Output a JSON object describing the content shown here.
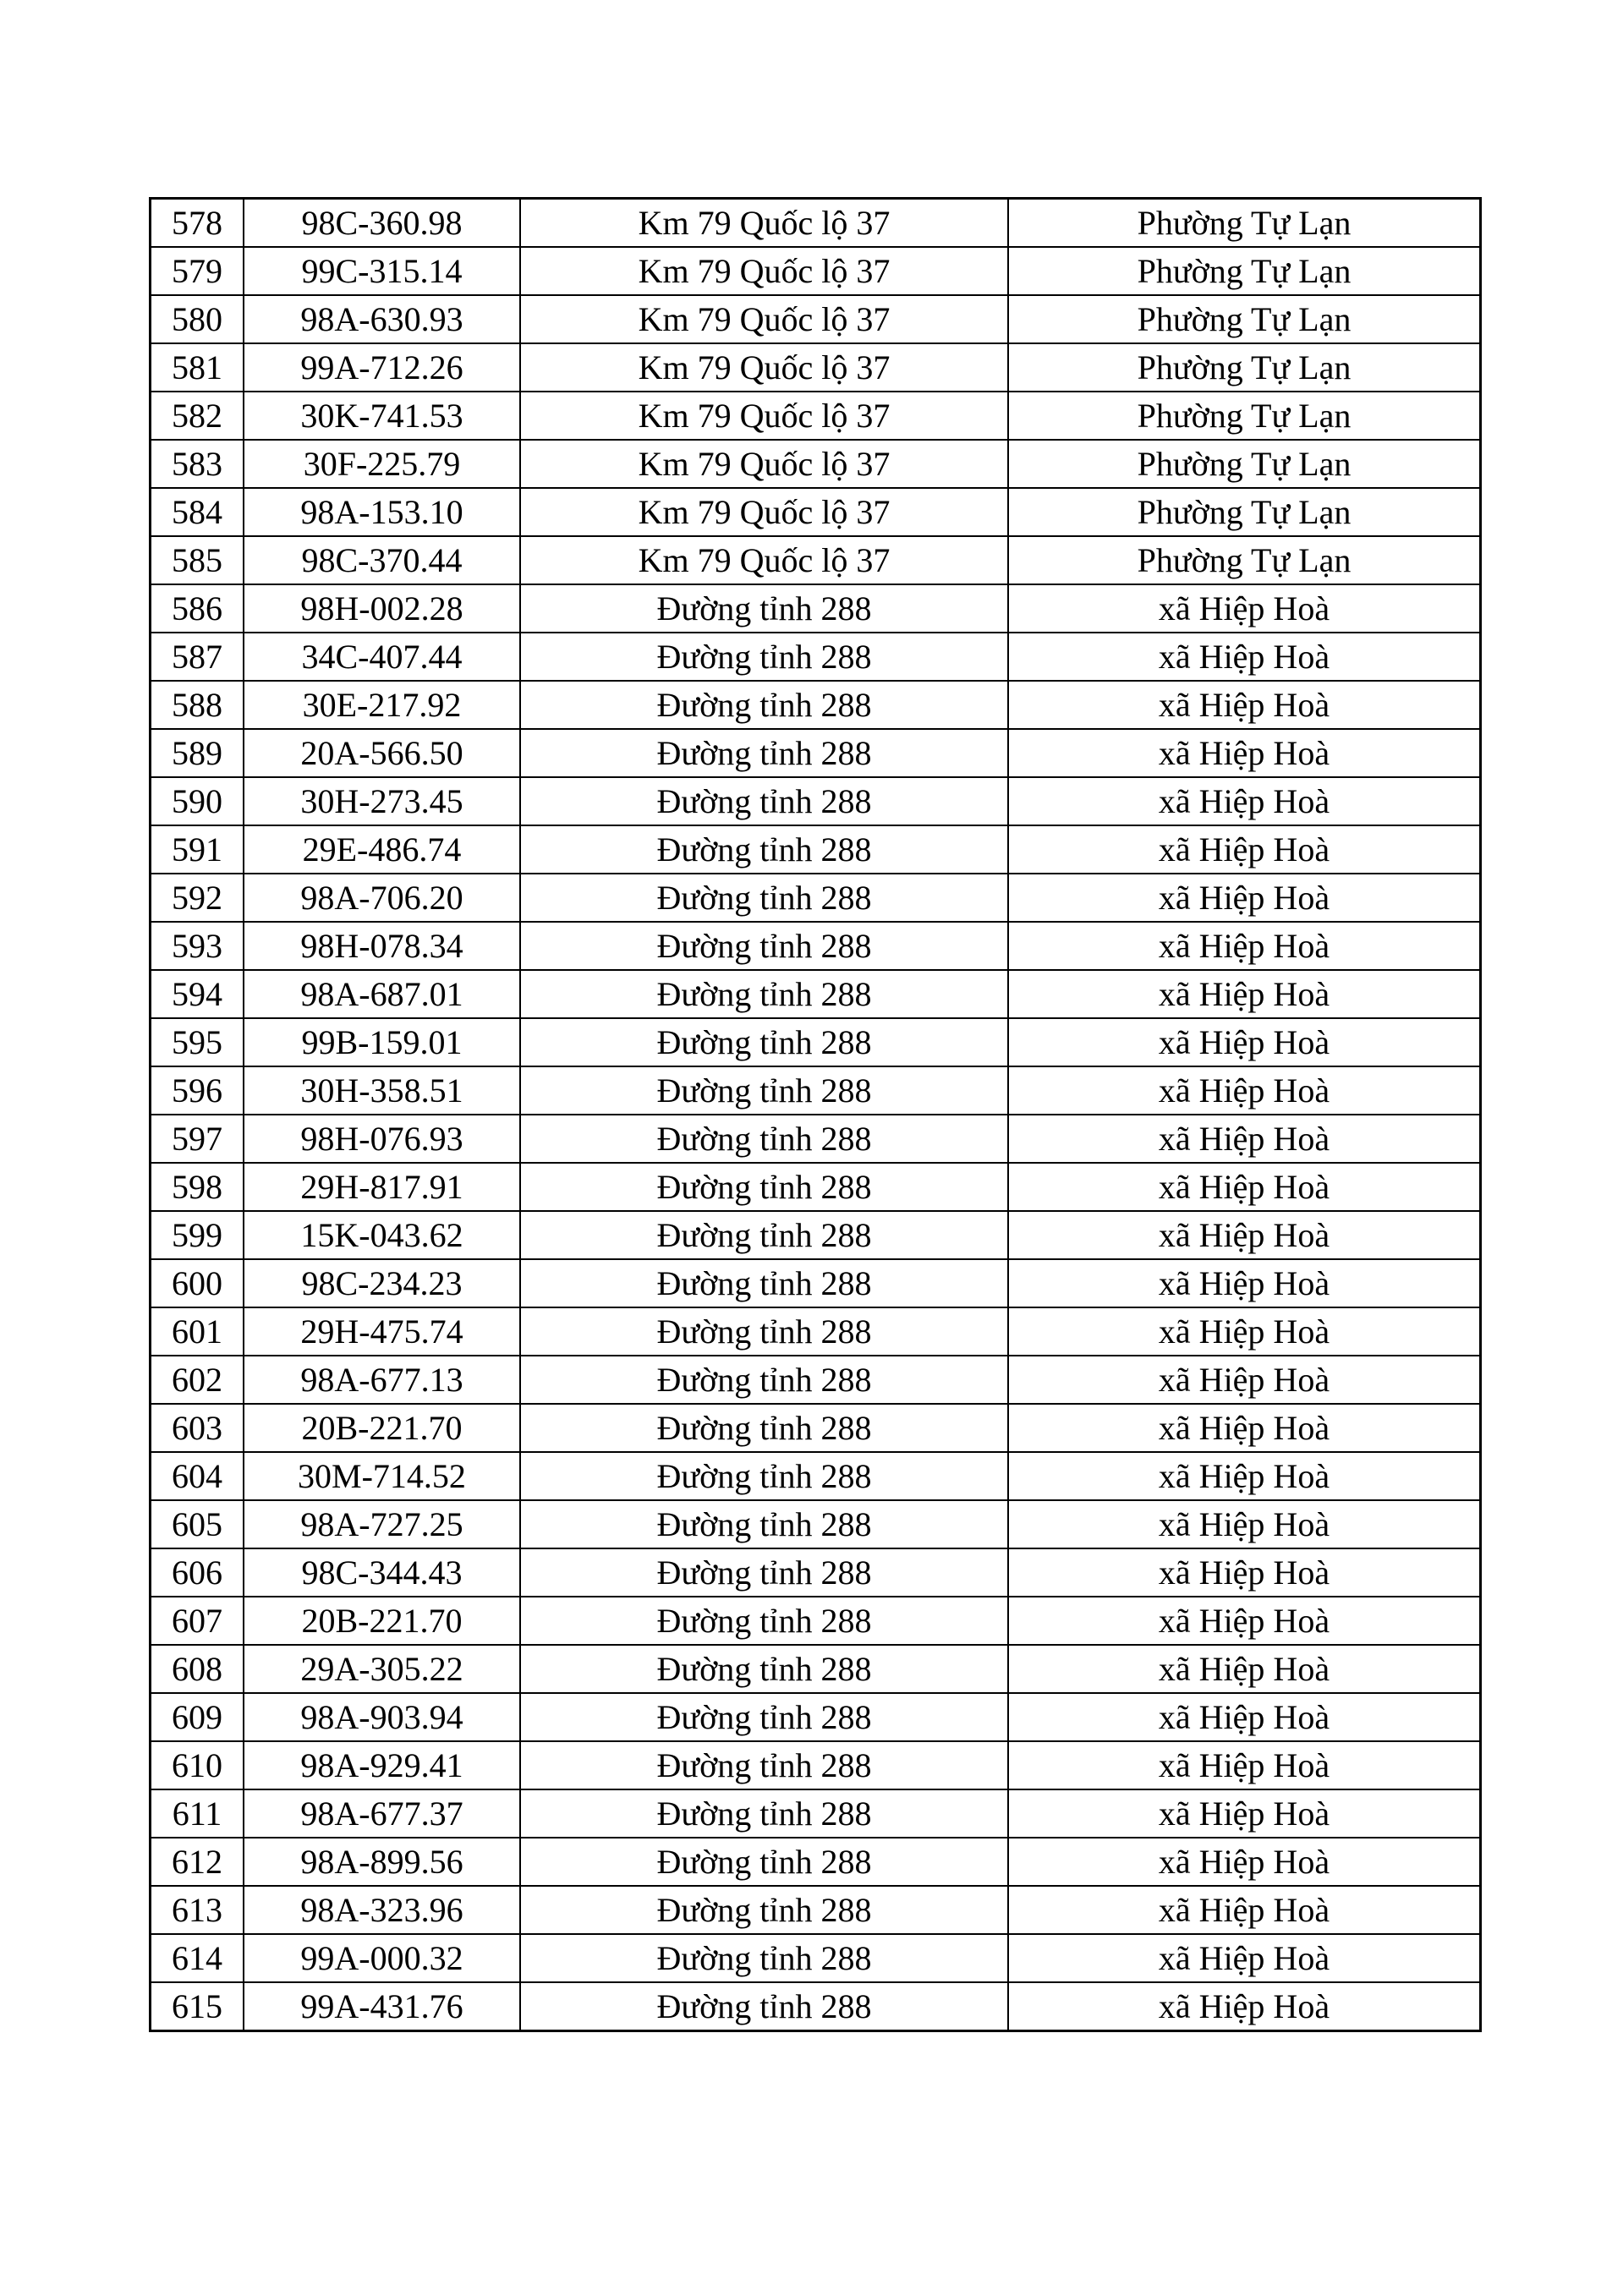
{
  "table": {
    "rows": [
      [
        "578",
        "98C-360.98",
        "Km 79 Quốc lộ 37",
        "Phường Tự Lạn"
      ],
      [
        "579",
        "99C-315.14",
        "Km 79 Quốc lộ 37",
        "Phường Tự Lạn"
      ],
      [
        "580",
        "98A-630.93",
        "Km 79 Quốc lộ 37",
        "Phường Tự Lạn"
      ],
      [
        "581",
        "99A-712.26",
        "Km 79 Quốc lộ 37",
        "Phường Tự Lạn"
      ],
      [
        "582",
        "30K-741.53",
        "Km 79 Quốc lộ 37",
        "Phường Tự Lạn"
      ],
      [
        "583",
        "30F-225.79",
        "Km 79 Quốc lộ 37",
        "Phường Tự Lạn"
      ],
      [
        "584",
        "98A-153.10",
        "Km 79 Quốc lộ 37",
        "Phường Tự Lạn"
      ],
      [
        "585",
        "98C-370.44",
        "Km 79 Quốc lộ 37",
        "Phường Tự Lạn"
      ],
      [
        "586",
        "98H-002.28",
        "Đường tỉnh 288",
        "xã Hiệp Hoà"
      ],
      [
        "587",
        "34C-407.44",
        "Đường tỉnh 288",
        "xã Hiệp Hoà"
      ],
      [
        "588",
        "30E-217.92",
        "Đường tỉnh 288",
        "xã Hiệp Hoà"
      ],
      [
        "589",
        "20A-566.50",
        "Đường tỉnh 288",
        "xã Hiệp Hoà"
      ],
      [
        "590",
        "30H-273.45",
        "Đường tỉnh 288",
        "xã Hiệp Hoà"
      ],
      [
        "591",
        "29E-486.74",
        "Đường tỉnh 288",
        "xã Hiệp Hoà"
      ],
      [
        "592",
        "98A-706.20",
        "Đường tỉnh 288",
        "xã Hiệp Hoà"
      ],
      [
        "593",
        "98H-078.34",
        "Đường tỉnh 288",
        "xã Hiệp Hoà"
      ],
      [
        "594",
        "98A-687.01",
        "Đường tỉnh 288",
        "xã Hiệp Hoà"
      ],
      [
        "595",
        "99B-159.01",
        "Đường tỉnh 288",
        "xã Hiệp Hoà"
      ],
      [
        "596",
        "30H-358.51",
        "Đường tỉnh 288",
        "xã Hiệp Hoà"
      ],
      [
        "597",
        "98H-076.93",
        "Đường tỉnh 288",
        "xã Hiệp Hoà"
      ],
      [
        "598",
        "29H-817.91",
        "Đường tỉnh 288",
        "xã Hiệp Hoà"
      ],
      [
        "599",
        "15K-043.62",
        "Đường tỉnh 288",
        "xã Hiệp Hoà"
      ],
      [
        "600",
        "98C-234.23",
        "Đường tỉnh 288",
        "xã Hiệp Hoà"
      ],
      [
        "601",
        "29H-475.74",
        "Đường tỉnh 288",
        "xã Hiệp Hoà"
      ],
      [
        "602",
        "98A-677.13",
        "Đường tỉnh 288",
        "xã Hiệp Hoà"
      ],
      [
        "603",
        "20B-221.70",
        "Đường tỉnh 288",
        "xã Hiệp Hoà"
      ],
      [
        "604",
        "30M-714.52",
        "Đường tỉnh 288",
        "xã Hiệp Hoà"
      ],
      [
        "605",
        "98A-727.25",
        "Đường tỉnh 288",
        "xã Hiệp Hoà"
      ],
      [
        "606",
        "98C-344.43",
        "Đường tỉnh 288",
        "xã Hiệp Hoà"
      ],
      [
        "607",
        "20B-221.70",
        "Đường tỉnh 288",
        "xã Hiệp Hoà"
      ],
      [
        "608",
        "29A-305.22",
        "Đường tỉnh 288",
        "xã Hiệp Hoà"
      ],
      [
        "609",
        "98A-903.94",
        "Đường tỉnh 288",
        "xã Hiệp Hoà"
      ],
      [
        "610",
        "98A-929.41",
        "Đường tỉnh 288",
        "xã Hiệp Hoà"
      ],
      [
        "611",
        "98A-677.37",
        "Đường tỉnh 288",
        "xã Hiệp Hoà"
      ],
      [
        "612",
        "98A-899.56",
        "Đường tỉnh 288",
        "xã Hiệp Hoà"
      ],
      [
        "613",
        "98A-323.96",
        "Đường tỉnh 288",
        "xã Hiệp Hoà"
      ],
      [
        "614",
        "99A-000.32",
        "Đường tỉnh 288",
        "xã Hiệp Hoà"
      ],
      [
        "615",
        "99A-431.76",
        "Đường tỉnh 288",
        "xã Hiệp Hoà"
      ]
    ]
  }
}
